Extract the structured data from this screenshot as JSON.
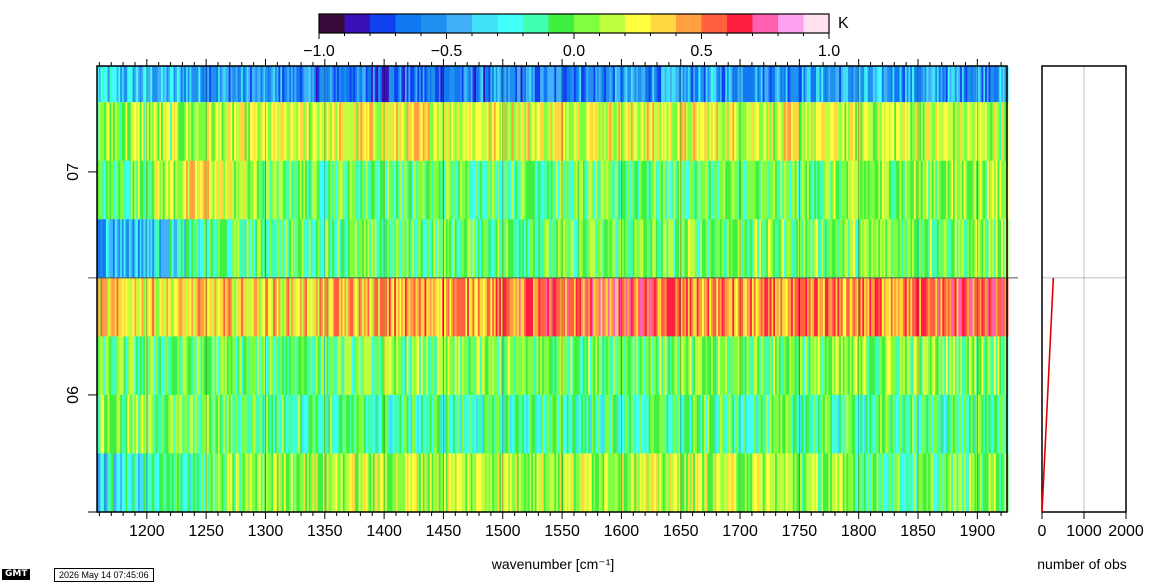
{
  "chart_data": [
    {
      "type": "heatmap",
      "colorbar": {
        "unit": "K",
        "range": [
          -1.0,
          1.0
        ],
        "tick_labels": [
          "−1.0",
          "−0.5",
          "0.0",
          "0.5",
          "1.0"
        ],
        "tick_values": [
          -1.0,
          -0.5,
          0.0,
          0.5,
          1.0
        ],
        "colors": [
          "#3a0a3a",
          "#3c10b8",
          "#1040f0",
          "#1078f0",
          "#2090f0",
          "#40b0f8",
          "#40e0f8",
          "#40fff8",
          "#40ffb0",
          "#40f040",
          "#80ff40",
          "#c0ff40",
          "#ffff40",
          "#ffd840",
          "#ffa040",
          "#ff6040",
          "#ff2040",
          "#ff60b0",
          "#ffa0f0",
          "#ffe0f0"
        ]
      },
      "xlabel": "wavenumber [cm⁻¹]",
      "xlim": [
        1158,
        1925
      ],
      "x_ticks": [
        1200,
        1250,
        1300,
        1350,
        1400,
        1450,
        1500,
        1550,
        1600,
        1650,
        1700,
        1750,
        1800,
        1850,
        1900
      ],
      "y_tick_labels": [
        "07",
        "06"
      ],
      "grid": true,
      "rows": [
        {
          "day": "07",
          "mean_pattern": [
            [
              1158,
              -0.35
            ],
            [
              1300,
              -0.55
            ],
            [
              1400,
              -0.65
            ],
            [
              1700,
              -0.5
            ],
            [
              1925,
              -0.5
            ]
          ]
        },
        {
          "day": "07",
          "mean_pattern": [
            [
              1158,
              0.05
            ],
            [
              1300,
              0.15
            ],
            [
              1400,
              0.25
            ],
            [
              1700,
              0.22
            ],
            [
              1925,
              0.12
            ]
          ]
        },
        {
          "day": "07",
          "mean_pattern": [
            [
              1158,
              -0.15
            ],
            [
              1250,
              0.3
            ],
            [
              1300,
              0.0
            ],
            [
              1400,
              -0.05
            ],
            [
              1700,
              -0.05
            ],
            [
              1925,
              0.1
            ]
          ]
        },
        {
          "day": "07",
          "mean_pattern": [
            [
              1158,
              -0.45
            ],
            [
              1200,
              -0.4
            ],
            [
              1250,
              -0.15
            ],
            [
              1300,
              -0.05
            ],
            [
              1400,
              -0.05
            ],
            [
              1700,
              0.0
            ],
            [
              1925,
              0.05
            ]
          ]
        },
        {
          "day": "06",
          "mean_pattern": [
            [
              1158,
              0.3
            ],
            [
              1300,
              0.3
            ],
            [
              1400,
              0.4
            ],
            [
              1580,
              0.55
            ],
            [
              1600,
              0.6
            ],
            [
              1700,
              0.4
            ],
            [
              1850,
              0.5
            ],
            [
              1900,
              0.6
            ],
            [
              1925,
              0.55
            ]
          ]
        },
        {
          "day": "06",
          "mean_pattern": [
            [
              1158,
              -0.05
            ],
            [
              1300,
              -0.05
            ],
            [
              1400,
              0.0
            ],
            [
              1700,
              0.0
            ],
            [
              1925,
              0.05
            ]
          ]
        },
        {
          "day": "06",
          "mean_pattern": [
            [
              1158,
              0.05
            ],
            [
              1300,
              -0.05
            ],
            [
              1400,
              -0.15
            ],
            [
              1700,
              -0.1
            ],
            [
              1925,
              -0.1
            ]
          ]
        },
        {
          "day": "06",
          "mean_pattern": [
            [
              1158,
              -0.35
            ],
            [
              1300,
              0.1
            ],
            [
              1400,
              0.15
            ],
            [
              1700,
              0.15
            ],
            [
              1850,
              -0.1
            ],
            [
              1925,
              0.1
            ]
          ]
        }
      ]
    },
    {
      "type": "line",
      "xlabel": "number of obs",
      "xlim": [
        0,
        2000
      ],
      "x_ticks": [
        0,
        1000,
        2000
      ],
      "series": [
        {
          "color": "#e00000",
          "x": [
            0,
            270
          ],
          "y_row_position": [
            8,
            4
          ]
        }
      ]
    }
  ],
  "footer": {
    "logo": "GMT",
    "timestamp": "2026 May 14 07:45:06"
  }
}
